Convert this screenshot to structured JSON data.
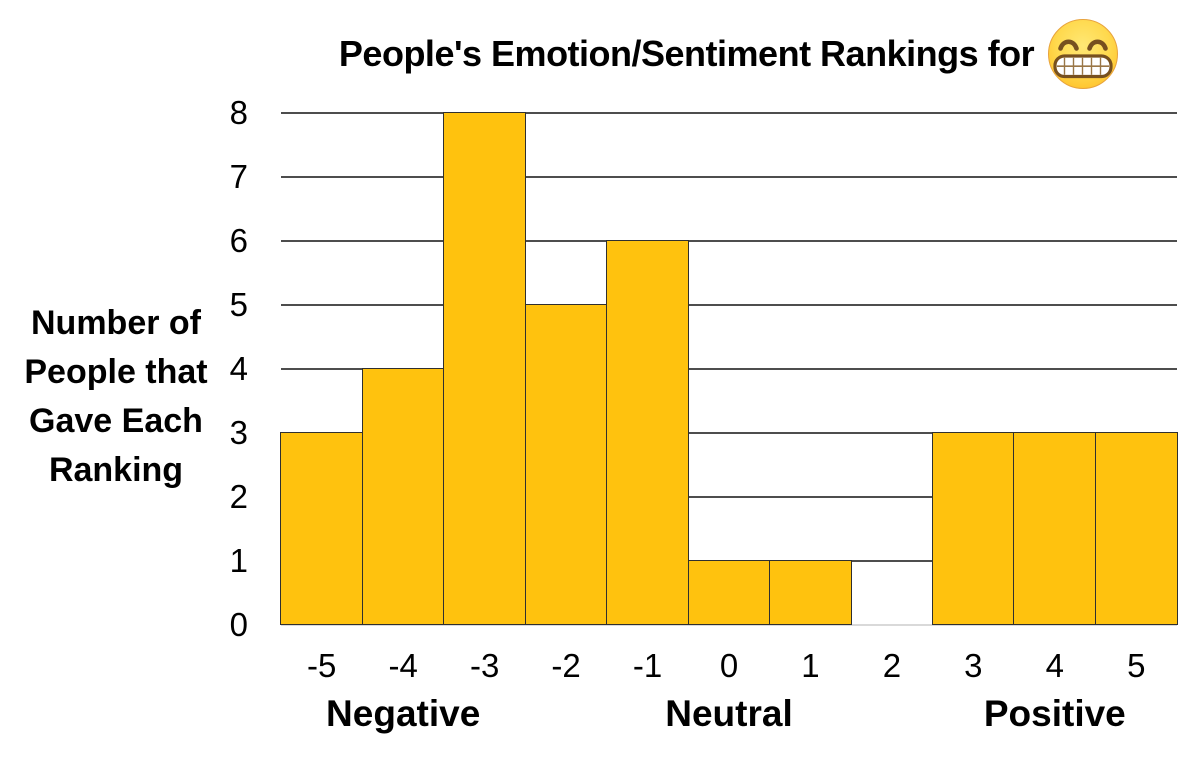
{
  "title": {
    "text": "People's Emotion/Sentiment Rankings for",
    "emoji_name": "beaming-face-with-smiling-eyes"
  },
  "y_axis_title_lines": [
    "Number of",
    "People that",
    "Gave Each",
    "Ranking"
  ],
  "chart_data": {
    "type": "bar",
    "title": "People's Emotion/Sentiment Rankings for 😁",
    "categories": [
      "-5",
      "-4",
      "-3",
      "-2",
      "-1",
      "0",
      "1",
      "2",
      "3",
      "4",
      "5"
    ],
    "values": [
      3,
      4,
      8,
      5,
      6,
      1,
      1,
      0,
      3,
      3,
      3
    ],
    "ylabel": "Number of People that Gave Each Ranking",
    "xlabel": "",
    "ylim": [
      0,
      8
    ],
    "yticks": [
      0,
      1,
      2,
      3,
      4,
      5,
      6,
      7,
      8
    ],
    "grid": "horizontal",
    "legend_position": "none",
    "bar_gap": 0,
    "group_labels": [
      {
        "label": "Negative",
        "anchor_category": "-4"
      },
      {
        "label": "Neutral",
        "anchor_category": "0"
      },
      {
        "label": "Positive",
        "anchor_category": "4"
      }
    ],
    "colors": {
      "bar_fill": "#FFC20E",
      "bar_border": "#2F2F2F",
      "gridline": "#4D4D4D",
      "baseline": "#D9D9D9",
      "text": "#000000"
    }
  }
}
